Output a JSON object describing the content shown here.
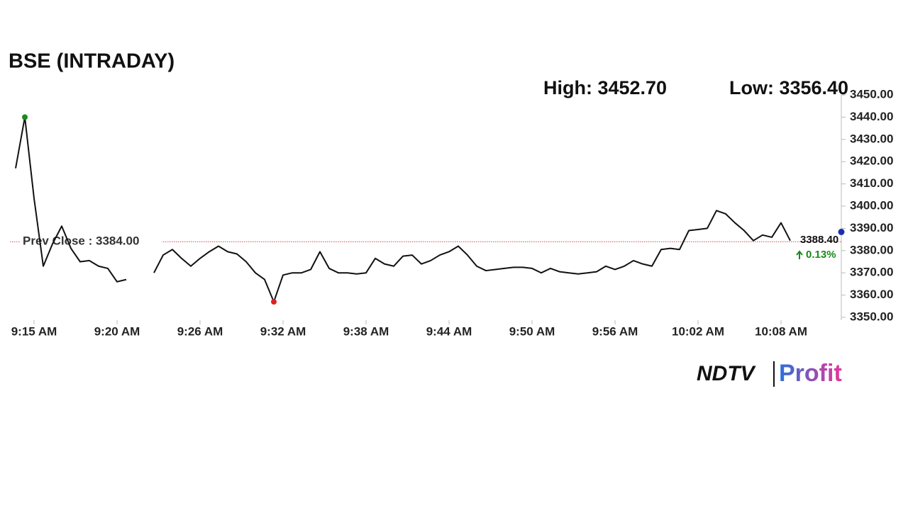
{
  "chart_data": {
    "type": "line",
    "title": "BSE (INTRADAY)",
    "high_label": "High: 3452.70",
    "low_label": "Low: 3356.40",
    "categories": [
      null,
      null,
      "9:15 AM",
      null,
      null,
      null,
      null,
      null,
      null,
      null,
      null,
      "9:20 AM",
      null,
      null,
      null,
      null,
      null,
      null,
      null,
      null,
      "9:26 AM",
      null,
      null,
      null,
      null,
      null,
      null,
      null,
      null,
      "9:32 AM",
      null,
      null,
      null,
      null,
      null,
      null,
      null,
      null,
      "9:38 AM",
      null,
      null,
      null,
      null,
      null,
      null,
      null,
      null,
      "9:44 AM",
      null,
      null,
      null,
      null,
      null,
      null,
      null,
      null,
      "9:50 AM",
      null,
      null,
      null,
      null,
      null,
      null,
      null,
      null,
      "9:56 AM",
      null,
      null,
      null,
      null,
      null,
      null,
      null,
      null,
      "10:02 AM",
      null,
      null,
      null,
      null,
      null,
      null,
      null,
      null,
      "10:08 AM",
      null
    ],
    "series": [
      {
        "name": "BSE",
        "color": "#111111",
        "values": [
          3417,
          3440,
          3403.5,
          3373,
          3383,
          3391,
          3381,
          3375,
          3375.5,
          3373,
          3372,
          3366,
          3367,
          null,
          null,
          3370,
          3378,
          3380.5,
          3376.5,
          3373,
          3376.5,
          3379.5,
          3382,
          3379.5,
          3378.5,
          3375,
          3370,
          3367,
          3357,
          3369,
          3370,
          3370,
          3371.5,
          3379.5,
          3372,
          3370,
          3370,
          3369.5,
          3370,
          3376.5,
          3374,
          3373,
          3377.5,
          3378,
          3374,
          3375.5,
          3378,
          3379.5,
          3382,
          3378,
          3373,
          3371,
          3371.5,
          3372,
          3372.5,
          3372.5,
          3372,
          3370,
          3372,
          3370.5,
          3370,
          3369.5,
          3370,
          3370.5,
          3373,
          3371.5,
          3373,
          3375.5,
          3374,
          3373,
          3380.5,
          3381,
          3380.5,
          3389,
          3389.5,
          3390,
          3398,
          3396.5,
          3392.5,
          3389,
          3384.5,
          3387,
          3386,
          3392.5,
          3384.5
        ]
      }
    ],
    "prev_close": {
      "value": 3384,
      "label": "Prev Close : 3384.00",
      "color": "#e04040"
    },
    "current": {
      "value": 3388.4,
      "label": "3388.40",
      "change_label": "0.13%",
      "color": "#1a2fb0",
      "change_color": "#1a8a1a"
    },
    "high_point_color": "#1a8a1a",
    "low_point_color": "#e02020",
    "ylim": [
      3350,
      3450
    ],
    "yticks": [
      {
        "value": 3350,
        "label": "3350.00"
      },
      {
        "value": 3360,
        "label": "3360.00"
      },
      {
        "value": 3370,
        "label": "3370.00"
      },
      {
        "value": 3380,
        "label": "3380.00"
      },
      {
        "value": 3390,
        "label": "3390.00"
      },
      {
        "value": 3400,
        "label": "3400.00"
      },
      {
        "value": 3410,
        "label": "3410.00"
      },
      {
        "value": 3420,
        "label": "3420.00"
      },
      {
        "value": 3430,
        "label": "3430.00"
      },
      {
        "value": 3440,
        "label": "3440.00"
      },
      {
        "value": 3450,
        "label": "3450.00"
      }
    ]
  },
  "logo": {
    "left": "NDTV",
    "right": "Profit"
  }
}
